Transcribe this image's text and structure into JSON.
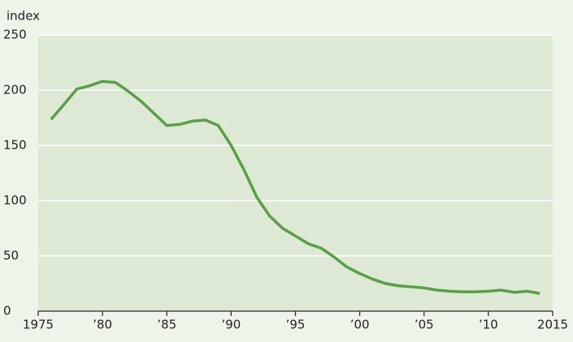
{
  "chart_data": {
    "type": "line",
    "y_label": "index",
    "x": [
      1976,
      1977,
      1978,
      1979,
      1980,
      1981,
      1982,
      1983,
      1984,
      1985,
      1986,
      1987,
      1988,
      1989,
      1990,
      1991,
      1992,
      1993,
      1994,
      1995,
      1996,
      1997,
      1998,
      1999,
      2000,
      2001,
      2002,
      2003,
      2004,
      2005,
      2006,
      2007,
      2008,
      2009,
      2010,
      2011,
      2012,
      2013,
      2014
    ],
    "series": [
      {
        "color": "#5a9e47",
        "values": [
          173.5,
          187,
          201,
          204,
          208,
          207,
          199,
          190,
          179,
          168,
          169,
          172,
          173,
          168,
          150,
          128,
          103,
          86,
          75,
          68,
          61,
          57,
          49,
          40,
          34,
          29,
          25,
          23,
          22,
          21,
          19,
          18,
          17.5,
          17.5,
          18,
          19,
          17,
          18,
          16
        ]
      }
    ],
    "xlim": [
      1975,
      2015
    ],
    "xticks": [
      1975,
      {
        "value": 1980,
        "label": "’80"
      },
      {
        "value": 1985,
        "label": "’85"
      },
      {
        "value": 1990,
        "label": "’90"
      },
      {
        "value": 1995,
        "label": "’95"
      },
      {
        "value": 2000,
        "label": "’00"
      },
      {
        "value": 2005,
        "label": "’05"
      },
      {
        "value": 2010,
        "label": "’10"
      },
      2015
    ],
    "ylim": [
      0,
      250
    ],
    "yticks": [
      0,
      50,
      100,
      150,
      200,
      250
    ],
    "grid": true,
    "plot_background": "#dde9d5"
  }
}
